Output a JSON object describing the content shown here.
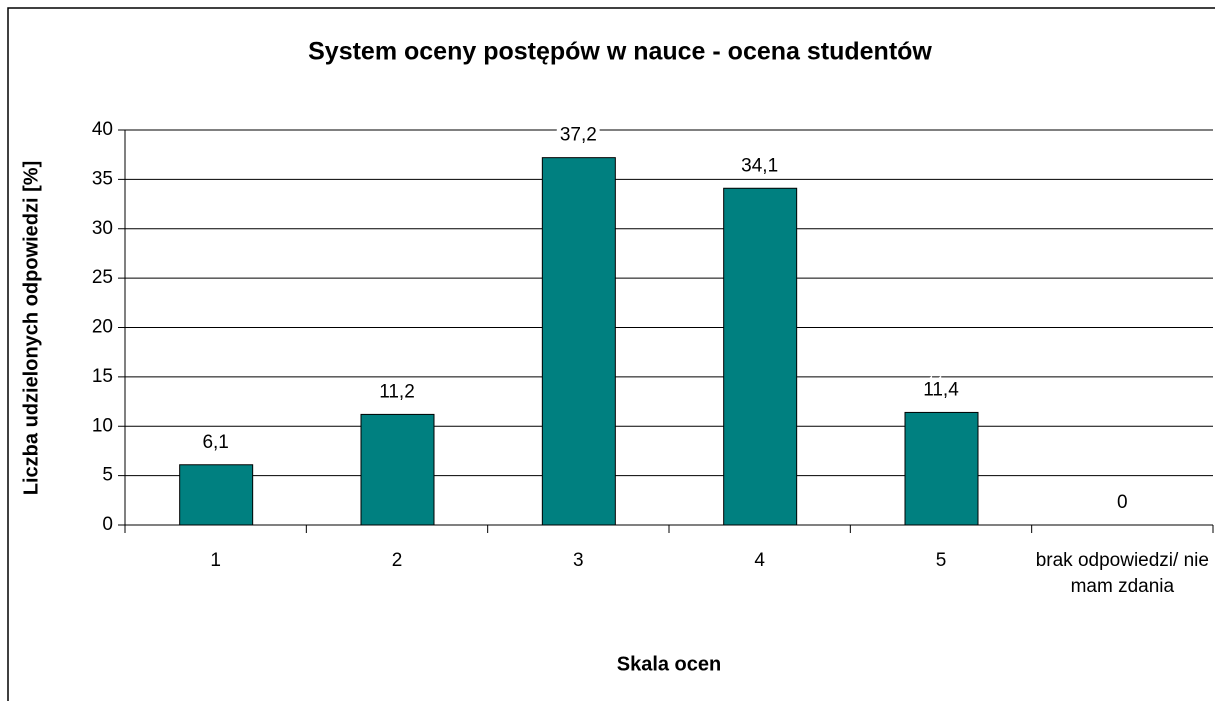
{
  "chart_data": {
    "type": "bar",
    "title": "System oceny postępów w nauce - ocena studentów",
    "x_label": "Skala ocen",
    "y_label": "Liczba udzielonych odpowiedzi [%]",
    "categories": [
      "1",
      "2",
      "3",
      "4",
      "5",
      "brak odpowiedzi/ nie mam zdania"
    ],
    "values": [
      6.1,
      11.2,
      37.2,
      34.1,
      11.4,
      0
    ],
    "value_labels": [
      "6,1",
      "11,2",
      "37,2",
      "34,1",
      "11,4",
      "0"
    ],
    "color": "#008080",
    "ylim": [
      0,
      40
    ],
    "yticks": [
      0,
      5,
      10,
      15,
      20,
      25,
      30,
      35,
      40
    ],
    "grid": true
  }
}
